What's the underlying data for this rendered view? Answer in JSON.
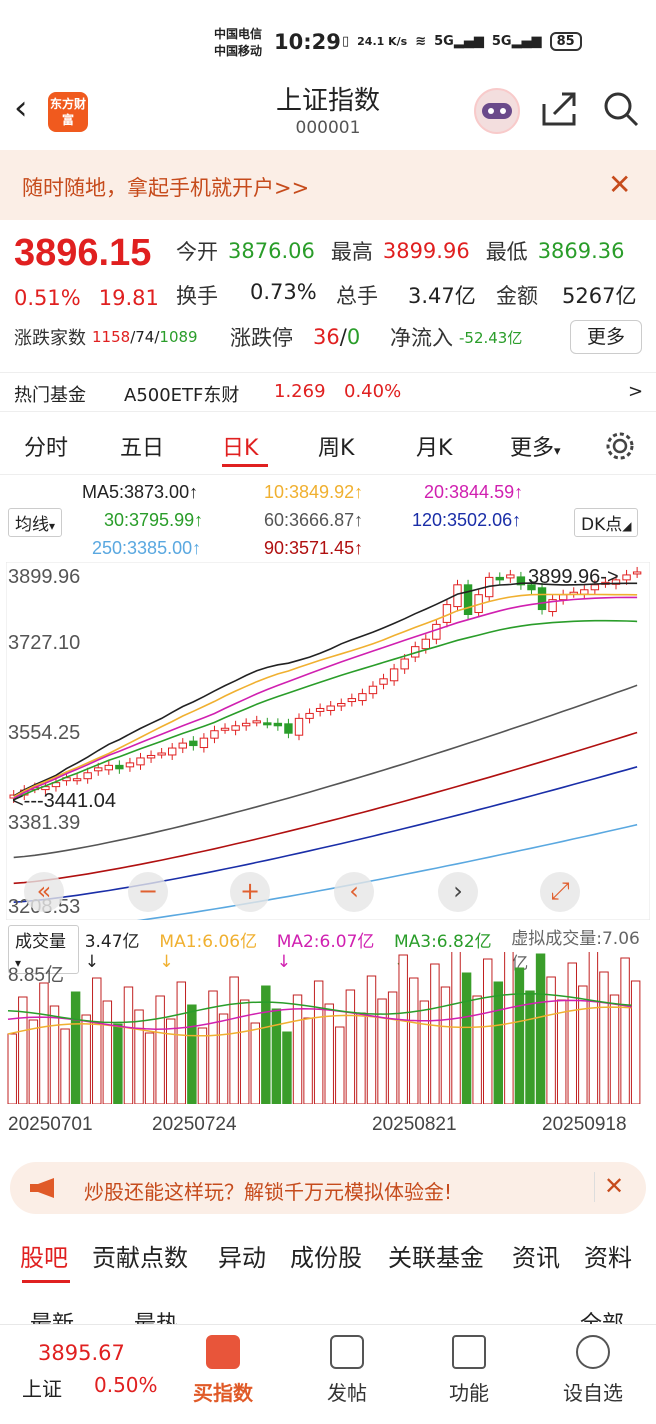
{
  "status": {
    "carrier1": "中国电信",
    "carrier2": "中国移动",
    "time": "10:29",
    "speed": "24.1 K/s",
    "net1": "5G",
    "net2": "5G",
    "battery": "85"
  },
  "header": {
    "logo": "东方财富",
    "title": "上证指数",
    "code": "000001"
  },
  "banner": {
    "text": "随时随地，拿起手机就开户>>"
  },
  "quote": {
    "price": "3896.15",
    "pct": "0.51%",
    "chg": "19.81",
    "open_label": "今开",
    "open": "3876.06",
    "high_label": "最高",
    "high": "3899.96",
    "low_label": "最低",
    "low": "3869.36",
    "turnover_label": "换手",
    "turnover": "0.73%",
    "volume_label": "总手",
    "volume": "3.47亿",
    "amount_label": "金额",
    "amount": "5267亿",
    "updown_label": "涨跌家数",
    "up": "1158",
    "flat": "74",
    "down": "1089",
    "limit_label": "涨跌停",
    "limit_up": "36",
    "limit_down": "0",
    "inflow_label": "净流入",
    "inflow": "-52.43亿",
    "more": "更多"
  },
  "fund": {
    "label": "热门基金",
    "name": "A500ETF东财",
    "price": "1.269",
    "pct": "0.40%",
    "arrow": ">"
  },
  "tabs": [
    "分时",
    "五日",
    "日K",
    "周K",
    "月K",
    "更多"
  ],
  "ma": {
    "selector": "均线",
    "dk": "DK点",
    "ma5": "MA5:3873.00↑",
    "ma10": "10:3849.92↑",
    "ma20": "20:3844.59↑",
    "ma30": "30:3795.99↑",
    "ma60": "60:3666.87↑",
    "ma120": "120:3502.06↑",
    "ma250": "250:3385.00↑",
    "ma90": "90:3571.45↑"
  },
  "chart": {
    "y_labels": [
      "3899.96",
      "3727.10",
      "3554.25",
      "3381.39",
      "3208.53"
    ],
    "high_note": "3899.96->",
    "low_note": "<---3441.04"
  },
  "volume": {
    "selector": "成交量",
    "v": "3.47亿↓",
    "ma1": "MA1:6.06亿↓",
    "ma2": "MA2:6.07亿↓",
    "ma3": "MA3:6.82亿↓",
    "virtual": "虚拟成交量:7.06亿",
    "ymax": "8.85亿"
  },
  "dates": [
    "20250701",
    "20250724",
    "20250821",
    "20250918"
  ],
  "promo": {
    "text": "炒股还能这样玩？解锁千万元模拟体验金!"
  },
  "subtabs": [
    "股吧",
    "贡献点数",
    "异动",
    "成份股",
    "关联基金",
    "资讯",
    "资料"
  ],
  "feed": {
    "latest": "最新",
    "hot": "最热",
    "all": "全部"
  },
  "bottom": {
    "price": "3895.67",
    "name": "上证",
    "pct": "0.50%",
    "items": [
      "买指数",
      "发帖",
      "功能",
      "设自选"
    ]
  },
  "chart_data": {
    "type": "candlestick",
    "y_range": [
      3208.53,
      3899.96
    ],
    "closes": [
      3445,
      3455,
      3460,
      3462,
      3470,
      3480,
      3478,
      3490,
      3500,
      3505,
      3498,
      3510,
      3520,
      3525,
      3530,
      3540,
      3550,
      3545,
      3560,
      3575,
      3580,
      3585,
      3590,
      3595,
      3590,
      3585,
      3570,
      3600,
      3610,
      3620,
      3625,
      3630,
      3640,
      3650,
      3665,
      3680,
      3700,
      3720,
      3745,
      3760,
      3790,
      3830,
      3870,
      3810,
      3850,
      3885,
      3880,
      3890,
      3870,
      3860,
      3820,
      3840,
      3850,
      3855,
      3860,
      3870,
      3875,
      3880,
      3890,
      3896
    ],
    "ma_values": {
      "MA5": 3873.0,
      "MA10": 3849.92,
      "MA20": 3844.59,
      "MA30": 3795.99,
      "MA60": 3666.87,
      "MA90": 3571.45,
      "MA120": 3502.06,
      "MA250": 3385.0
    }
  },
  "colors": {
    "red": "#e02020",
    "green": "#2a9d2a",
    "accent": "#f05a1e"
  }
}
